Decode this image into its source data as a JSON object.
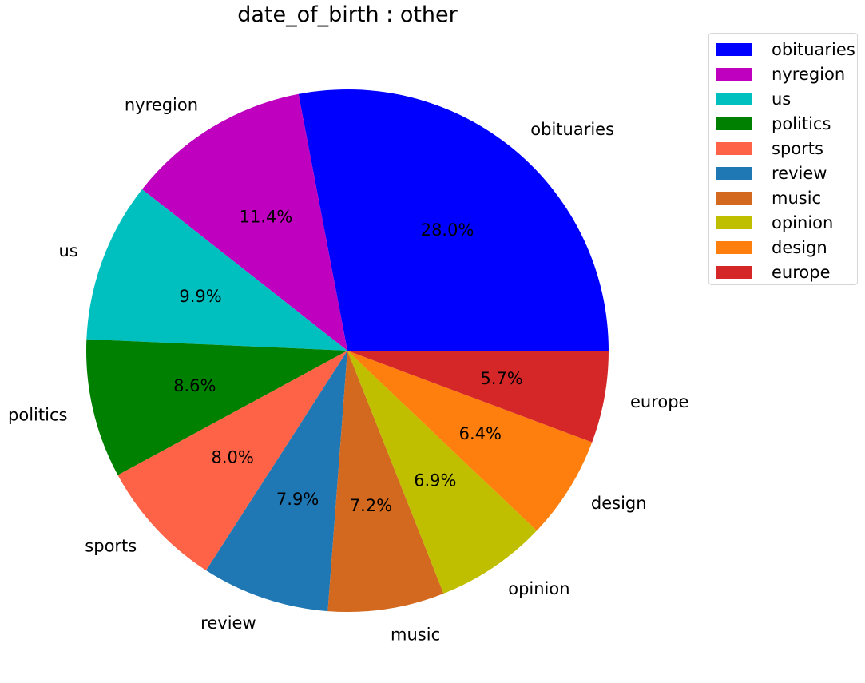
{
  "chart_data": {
    "type": "pie",
    "title": "date_of_birth : other",
    "categories": [
      "obituaries",
      "nyregion",
      "us",
      "politics",
      "sports",
      "review",
      "music",
      "opinion",
      "design",
      "europe"
    ],
    "values": [
      28.0,
      11.4,
      9.9,
      8.6,
      8.0,
      7.9,
      7.2,
      6.9,
      6.4,
      5.7
    ],
    "pct_labels": [
      "28.0%",
      "11.4%",
      "9.9%",
      "8.6%",
      "8.0%",
      "7.9%",
      "7.2%",
      "6.9%",
      "6.4%",
      "5.7%"
    ],
    "colors": [
      "#0000ff",
      "#bf00bf",
      "#00bfbf",
      "#008000",
      "#ff6347",
      "#1f77b4",
      "#d2691e",
      "#bfbf00",
      "#ff7f0e",
      "#d62728"
    ],
    "start_angle_deg": 0,
    "direction": "counterclockwise",
    "legend": {
      "placement": "outside-top-right",
      "entries": [
        "obituaries",
        "nyregion",
        "us",
        "politics",
        "sports",
        "review",
        "music",
        "opinion",
        "design",
        "europe"
      ]
    }
  }
}
